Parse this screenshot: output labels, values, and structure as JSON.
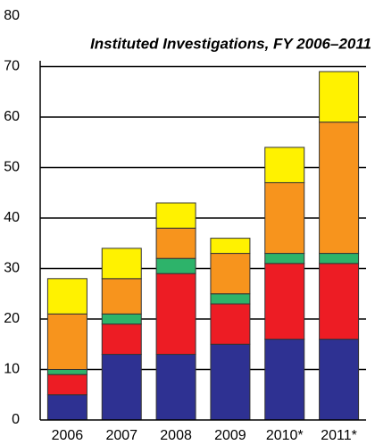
{
  "chart_data": {
    "type": "stacked_bar",
    "title": "Instituted Investigations, FY 2006–2011",
    "categories": [
      "2006",
      "2007",
      "2008",
      "2009",
      "2010*",
      "2011*"
    ],
    "series": [
      {
        "color": "#2e3192",
        "values": [
          5,
          13,
          13,
          15,
          16,
          16
        ]
      },
      {
        "color": "#ed1c24",
        "values": [
          4,
          6,
          16,
          8,
          15,
          15
        ]
      },
      {
        "color": "#2db36a",
        "values": [
          1,
          2,
          3,
          2,
          2,
          2
        ]
      },
      {
        "color": "#f7941d",
        "values": [
          11,
          7,
          6,
          8,
          14,
          26
        ]
      },
      {
        "color": "#fff200",
        "values": [
          7,
          6,
          5,
          3,
          7,
          10
        ]
      }
    ],
    "ylim": [
      0,
      80
    ],
    "yticks": [
      0,
      10,
      20,
      30,
      40,
      50,
      60,
      70,
      80
    ],
    "grid": true
  }
}
